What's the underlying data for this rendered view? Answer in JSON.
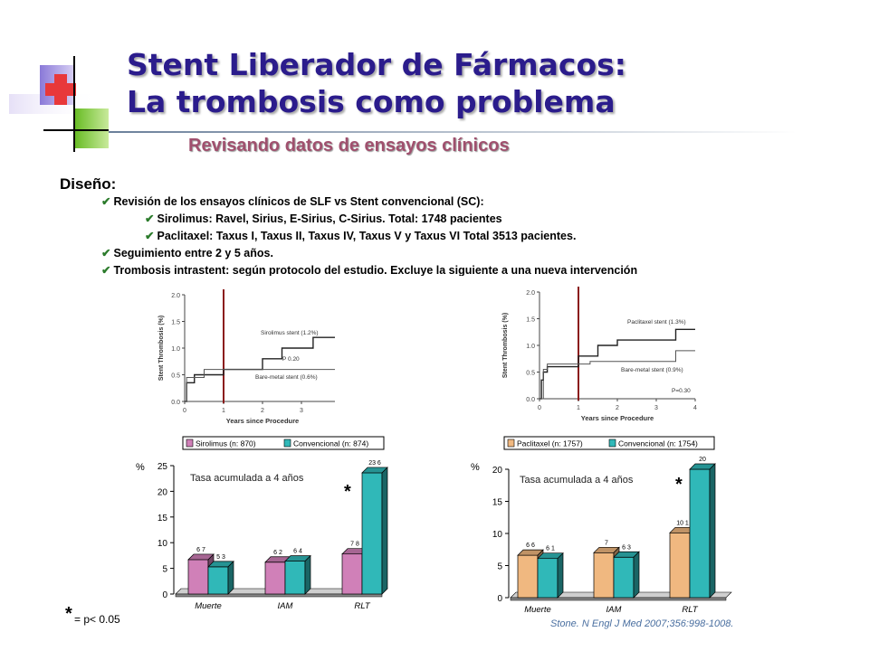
{
  "header": {
    "title_line1": "Stent Liberador de Fármacos:",
    "title_line2": "La trombosis como problema",
    "subtitle": "Revisando datos de ensayos clínicos"
  },
  "design": {
    "heading": "Diseño:",
    "bullets": [
      "Revisión de los ensayos clínicos de SLF vs Stent convencional (SC):",
      "Sirolimus: Ravel, Sirius, E-Sirius, C-Sirius. Total: 1748 pacientes",
      "Paclitaxel: Taxus I, Taxus II, Taxus IV, Taxus V y Taxus VI Total 3513 pacientes.",
      "Seguimiento entre 2 y 5 años.",
      "Trombosis intrastent: según protocolo del estudio. Excluye la siguiente a una nueva intervención"
    ]
  },
  "colors": {
    "title": "#2b1c8c",
    "subtitle": "#a0506e",
    "sirolimus": "#d080b8",
    "convencional": "#30b8b8",
    "paclitaxel": "#f0b880",
    "divider": "#8b1a1a"
  },
  "chart_data": [
    {
      "type": "line",
      "ylabel": "Stent Thrombosis (%)",
      "xlabel": "Years since Procedure",
      "xlim": [
        0,
        4
      ],
      "ylim": [
        0,
        2.0
      ],
      "xticks": [
        "0",
        "1",
        "2",
        "3",
        "4"
      ],
      "yticks": [
        "0.0",
        "0.5",
        "1.0",
        "1.5",
        "2.0"
      ],
      "series": [
        {
          "name": "Sirolimus stent (1.2%)",
          "x": [
            0,
            0.05,
            0.05,
            0.25,
            0.25,
            1.0,
            1.0,
            2.0,
            2.0,
            2.5,
            2.5,
            3.3,
            3.3,
            4.0
          ],
          "y": [
            0,
            0,
            0.35,
            0.35,
            0.5,
            0.5,
            0.6,
            0.6,
            0.8,
            0.8,
            1.0,
            1.0,
            1.2,
            1.2
          ]
        },
        {
          "name": "Bare-metal stent (0.6%)",
          "x": [
            0,
            0.05,
            0.05,
            0.5,
            0.5,
            4.0
          ],
          "y": [
            0,
            0,
            0.45,
            0.45,
            0.6,
            0.6
          ]
        }
      ],
      "annotation": "P  0.20"
    },
    {
      "type": "line",
      "ylabel": "Stent Thrombosis (%)",
      "xlabel": "Years since Procedure",
      "xlim": [
        0,
        4
      ],
      "ylim": [
        0,
        2.0
      ],
      "xticks": [
        "0",
        "1",
        "2",
        "3",
        "4"
      ],
      "yticks": [
        "0.0",
        "0.5",
        "1.0",
        "1.5",
        "2.0"
      ],
      "series": [
        {
          "name": "Paclitaxel stent (1.3%)",
          "x": [
            0,
            0.05,
            0.05,
            0.1,
            0.1,
            0.2,
            0.2,
            1.0,
            1.0,
            1.5,
            1.5,
            2.0,
            2.0,
            3.5,
            3.5,
            4.0
          ],
          "y": [
            0,
            0,
            0.35,
            0.35,
            0.5,
            0.5,
            0.6,
            0.6,
            0.8,
            0.8,
            1.0,
            1.0,
            1.1,
            1.1,
            1.3,
            1.3
          ]
        },
        {
          "name": "Bare-metal stent (0.9%)",
          "x": [
            0,
            0.1,
            0.1,
            0.2,
            0.2,
            1.3,
            1.3,
            3.5,
            3.5,
            4.0
          ],
          "y": [
            0,
            0,
            0.55,
            0.55,
            0.65,
            0.65,
            0.7,
            0.7,
            0.9,
            0.9
          ]
        }
      ],
      "annotation": "P=0.30"
    },
    {
      "type": "bar",
      "title": "Tasa acumulada a 4 años",
      "ylabel": "%",
      "categories": [
        "Muerte",
        "IAM",
        "RLT"
      ],
      "ylim": [
        0,
        25
      ],
      "yticks": [
        "0",
        "5",
        "10",
        "15",
        "20",
        "25"
      ],
      "series": [
        {
          "name": "Sirolimus (n: 870)",
          "values": [
            6.7,
            6.2,
            7.8
          ],
          "labels": [
            "6 7",
            "6 2",
            "7 8"
          ]
        },
        {
          "name": "Convencional (n: 874)",
          "values": [
            5.3,
            6.4,
            23.6
          ],
          "labels": [
            "5 3",
            "6 4",
            "23 6"
          ]
        }
      ],
      "star": "*",
      "legend": "top"
    },
    {
      "type": "bar",
      "title": "Tasa acumulada a 4 años",
      "ylabel": "%",
      "categories": [
        "Muerte",
        "IAM",
        "RLT"
      ],
      "ylim": [
        0,
        20
      ],
      "yticks": [
        "0",
        "5",
        "10",
        "15",
        "20"
      ],
      "series": [
        {
          "name": "Paclitaxel (n: 1757)",
          "values": [
            6.6,
            7.0,
            10.1
          ],
          "labels": [
            "6 6",
            "7",
            "10 1"
          ]
        },
        {
          "name": "Convencional (n: 1754)",
          "values": [
            6.1,
            6.3,
            20.0
          ],
          "labels": [
            "6 1",
            "6 3",
            "20"
          ]
        }
      ],
      "star": "*",
      "legend": "top"
    }
  ],
  "footer": {
    "star": "*",
    "pnote": "= p< 0.05",
    "citation": "Stone. N Engl J Med 2007;356:998-1008."
  }
}
